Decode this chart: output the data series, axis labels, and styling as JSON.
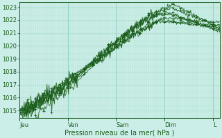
{
  "xlabel": "Pression niveau de la mer( hPa )",
  "bg_color": "#cceee8",
  "grid_major_color": "#88ccbb",
  "grid_minor_color": "#aaddcc",
  "line_color": "#1a5c1a",
  "ylim": [
    1014.4,
    1023.4
  ],
  "yticks": [
    1015,
    1016,
    1017,
    1018,
    1019,
    1020,
    1021,
    1022,
    1023
  ],
  "day_labels": [
    "Jeu",
    "Ven",
    "Sam",
    "Dim",
    "L"
  ],
  "day_positions": [
    0,
    1,
    2,
    3,
    4
  ],
  "xlim": [
    0,
    4.15
  ],
  "num_days": 4.15,
  "num_points": 300,
  "tick_fontsize": 6,
  "label_fontsize": 7
}
